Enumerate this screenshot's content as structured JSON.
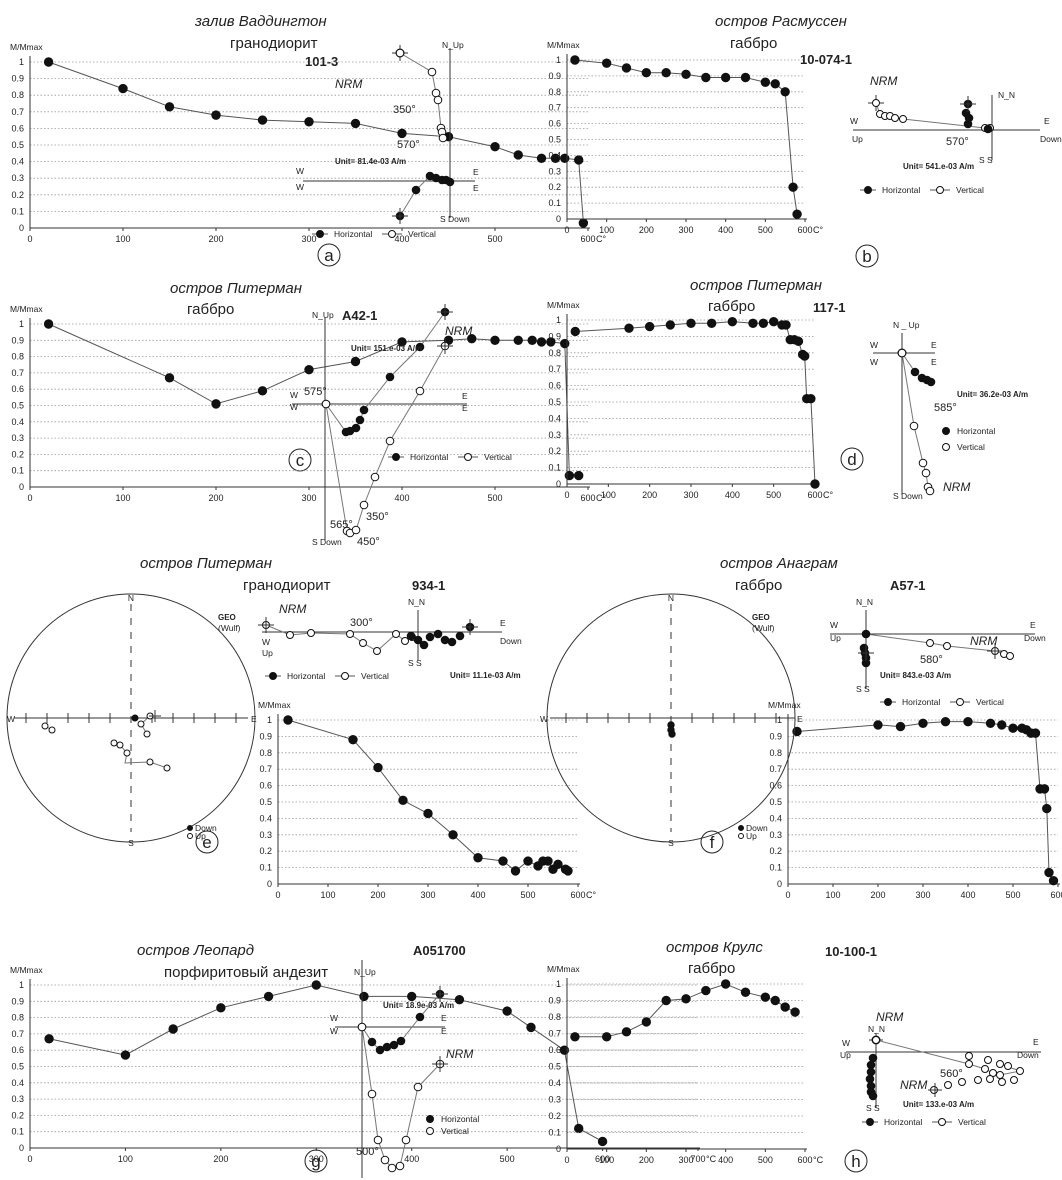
{
  "labels": {
    "y_axis": "M/Mmax",
    "x_unit": "C°",
    "x_unit_spaced": "°C",
    "legend_horizontal": "Horizontal",
    "legend_vertical": "Vertical",
    "down_label": "Down",
    "up_label": "Up",
    "geo": "GEO",
    "wulf": "(Wulf)",
    "nrm": "NRM"
  },
  "chart_data": [
    {
      "id": "a",
      "type": "line",
      "title": "залив Ваддингтон",
      "subtitle": "гранодиорит",
      "specimen": "101-3",
      "ylabel": "M/Mmax",
      "xlabel": "C°",
      "xlim": [
        0,
        600
      ],
      "ylim": [
        0,
        1
      ],
      "x": [
        20,
        100,
        150,
        200,
        250,
        300,
        350,
        400,
        450,
        500,
        525,
        550,
        565,
        575,
        590,
        595
      ],
      "y": [
        1.0,
        0.84,
        0.73,
        0.68,
        0.65,
        0.64,
        0.63,
        0.57,
        0.55,
        0.49,
        0.44,
        0.42,
        0.42,
        0.42,
        0.41,
        0.03
      ],
      "zijderveld": {
        "unit": "Unit= 81.4e-03 A/m",
        "steps": [
          "350°",
          "570°"
        ]
      }
    },
    {
      "id": "b",
      "type": "line",
      "title": "остров Расмуссен",
      "subtitle": "габбро",
      "specimen": "10-074-1",
      "ylabel": "M/Mmax",
      "xlabel": "C°",
      "xlim": [
        0,
        600
      ],
      "ylim": [
        0,
        1
      ],
      "x": [
        20,
        100,
        150,
        200,
        250,
        300,
        350,
        400,
        450,
        500,
        525,
        550,
        570,
        580
      ],
      "y": [
        1.0,
        0.98,
        0.95,
        0.92,
        0.92,
        0.91,
        0.89,
        0.89,
        0.89,
        0.86,
        0.85,
        0.8,
        0.2,
        0.03
      ],
      "zijderveld": {
        "unit": "Unit= 541.e-03 A/m",
        "steps": [
          "570°"
        ]
      }
    },
    {
      "id": "c",
      "type": "line",
      "title": "остров Питерман",
      "subtitle": "габбро",
      "specimen": "A42-1",
      "ylabel": "M/Mmax",
      "xlabel": "C°",
      "xlim": [
        0,
        600
      ],
      "ylim": [
        0,
        1
      ],
      "x": [
        20,
        150,
        200,
        250,
        300,
        350,
        400,
        450,
        475,
        500,
        525,
        540,
        550,
        560,
        575,
        580,
        590
      ],
      "y": [
        1.0,
        0.67,
        0.51,
        0.59,
        0.72,
        0.77,
        0.89,
        0.9,
        0.91,
        0.9,
        0.9,
        0.9,
        0.89,
        0.89,
        0.88,
        0.07,
        0.07
      ],
      "zijderveld": {
        "unit": "Unit= 151.e-03 A/m",
        "steps": [
          "575°",
          "350°",
          "565°",
          "450°"
        ]
      }
    },
    {
      "id": "d",
      "type": "line",
      "title": "остров Питерман",
      "subtitle": "габбро",
      "specimen": "117-1",
      "ylabel": "M/Mmax",
      "xlabel": "C°",
      "xlim": [
        0,
        600
      ],
      "ylim": [
        0,
        1
      ],
      "x": [
        20,
        150,
        200,
        250,
        300,
        350,
        400,
        450,
        475,
        500,
        520,
        530,
        540,
        550,
        560,
        570,
        575,
        580,
        590,
        600
      ],
      "y": [
        0.93,
        0.95,
        0.96,
        0.97,
        0.98,
        0.98,
        0.99,
        0.98,
        0.98,
        0.99,
        0.97,
        0.97,
        0.88,
        0.88,
        0.87,
        0.79,
        0.78,
        0.52,
        0.52,
        0.0
      ],
      "zijderveld": {
        "unit": "Unit= 36.2e-03 A/m",
        "steps": [
          "585°"
        ]
      }
    },
    {
      "id": "e",
      "type": "line",
      "title": "остров Питерман",
      "subtitle": "гранодиорит",
      "specimen": "934-1",
      "ylabel": "M/Mmax",
      "xlabel": "C°",
      "xlim": [
        0,
        600
      ],
      "ylim": [
        0,
        1
      ],
      "x": [
        20,
        150,
        200,
        250,
        300,
        350,
        400,
        450,
        475,
        500,
        520,
        530,
        540,
        550,
        560,
        575,
        580
      ],
      "y": [
        1.0,
        0.88,
        0.71,
        0.51,
        0.43,
        0.3,
        0.16,
        0.14,
        0.08,
        0.14,
        0.11,
        0.14,
        0.14,
        0.09,
        0.12,
        0.09,
        0.08
      ],
      "zijderveld": {
        "unit": "Unit= 11.1e-03 A/m",
        "steps": [
          "300°"
        ]
      }
    },
    {
      "id": "f",
      "type": "line",
      "title": "остров Анаграм",
      "subtitle": "габбро",
      "specimen": "A57-1",
      "ylabel": "M/Mmax",
      "xlabel": "C°",
      "xlim": [
        0,
        600
      ],
      "ylim": [
        0,
        1
      ],
      "x": [
        20,
        200,
        250,
        300,
        350,
        400,
        450,
        475,
        500,
        520,
        530,
        540,
        550,
        560,
        570,
        575,
        580,
        590
      ],
      "y": [
        0.93,
        0.97,
        0.96,
        0.98,
        0.99,
        0.99,
        0.98,
        0.97,
        0.95,
        0.95,
        0.94,
        0.92,
        0.92,
        0.58,
        0.58,
        0.46,
        0.07,
        0.02
      ],
      "zijderveld": {
        "unit": "Unit= 843.e-03 A/m",
        "steps": [
          "580°"
        ]
      }
    },
    {
      "id": "g",
      "type": "line",
      "title": "остров Леопард",
      "subtitle": "порфиритовый андезит",
      "specimen": "A051700",
      "ylabel": "M/Mmax",
      "xlabel": "°C",
      "xlim": [
        0,
        700
      ],
      "ylim": [
        0,
        1
      ],
      "x": [
        20,
        100,
        150,
        200,
        250,
        300,
        350,
        400,
        450,
        500,
        525,
        560,
        575,
        600
      ],
      "y": [
        0.67,
        0.57,
        0.73,
        0.86,
        0.93,
        1.0,
        0.93,
        0.93,
        0.91,
        0.84,
        0.74,
        0.6,
        0.12,
        0.04
      ],
      "zijderveld": {
        "unit": "Unit= 18.9e-03 A/m",
        "steps": [
          "500°"
        ]
      }
    },
    {
      "id": "h",
      "type": "line",
      "title": "остров Крулс",
      "subtitle": "габбро",
      "specimen": "10-100-1",
      "ylabel": "M/Mmax",
      "xlabel": "°C",
      "xlim": [
        0,
        600
      ],
      "ylim": [
        0,
        1
      ],
      "x": [
        20,
        100,
        150,
        200,
        250,
        300,
        350,
        400,
        450,
        500,
        525,
        550,
        575
      ],
      "y": [
        0.68,
        0.68,
        0.71,
        0.77,
        0.9,
        0.91,
        0.96,
        1.0,
        0.95,
        0.92,
        0.9,
        0.86,
        0.83
      ],
      "zijderveld": {
        "unit": "Unit= 133.e-03 A/m",
        "steps": [
          "560°"
        ]
      }
    }
  ]
}
